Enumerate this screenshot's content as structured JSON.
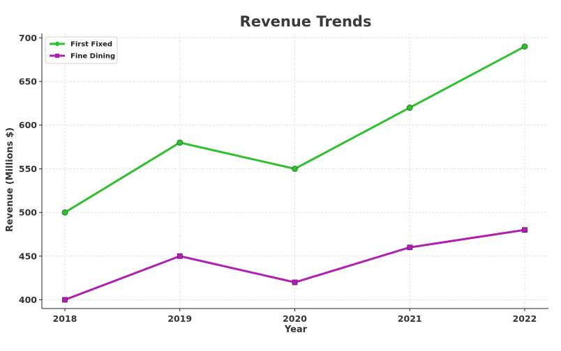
{
  "chart_data": {
    "type": "line",
    "title": "Revenue Trends",
    "xlabel": "Year",
    "ylabel": "Revenue (Millions $)",
    "categories": [
      "2018",
      "2019",
      "2020",
      "2021",
      "2022"
    ],
    "yticks": [
      400,
      450,
      500,
      550,
      600,
      650,
      700
    ],
    "ylim": [
      390,
      705
    ],
    "grid": true,
    "legend_position": "top-left",
    "series": [
      {
        "name": "First Fixed",
        "values": [
          500,
          580,
          550,
          620,
          690
        ],
        "color": "#2ec02e",
        "marker": "circle"
      },
      {
        "name": "Fine Dining",
        "values": [
          400,
          450,
          420,
          460,
          480
        ],
        "color": "#b020b0",
        "marker": "square"
      }
    ]
  }
}
